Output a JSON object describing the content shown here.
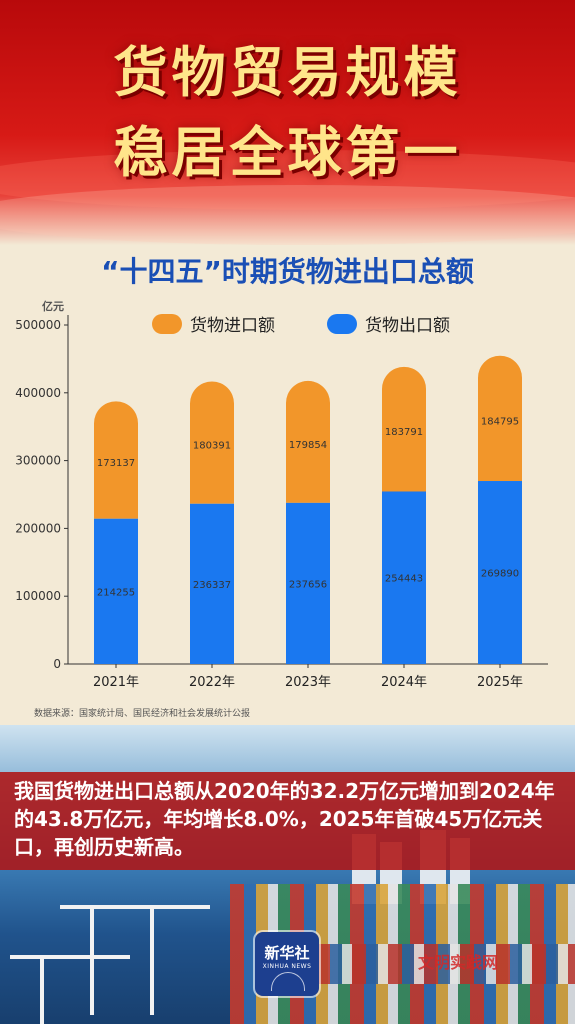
{
  "header": {
    "title_line1": "货物贸易规模",
    "title_line2": "稳居全球第一",
    "subtitle": "“十四五”时期货物进出口总额"
  },
  "chart_data": {
    "type": "bar",
    "stacked": true,
    "title": "“十四五”时期货物进出口总额",
    "ylabel": "亿元",
    "xlabel": "",
    "categories": [
      "2021年",
      "2022年",
      "2023年",
      "2024年",
      "2025年"
    ],
    "series": [
      {
        "name": "货物出口额",
        "color": "#1a78f0",
        "values": [
          214255,
          236337,
          237656,
          254443,
          269890
        ]
      },
      {
        "name": "货物进口额",
        "color": "#f2962a",
        "values": [
          173137,
          180391,
          179854,
          183791,
          184795
        ]
      }
    ],
    "ylim": [
      0,
      500000
    ],
    "yticks": [
      0,
      100000,
      200000,
      300000,
      400000,
      500000
    ],
    "legend": [
      "货物进口额",
      "货物出口额"
    ],
    "legend_position": "top",
    "grid": false
  },
  "source": "数据来源：国家统计局、国民经济和社会发展统计公报",
  "caption": "我国货物进出口总额从2020年的32.2万亿元增加到2024年的43.8万亿元，年均增长8.0%，2025年首破45万亿元关口，再创历史新高。",
  "logo": {
    "name_cn": "新华社",
    "name_en": "XINHUA NEWS"
  },
  "watermark": "文明实践网"
}
